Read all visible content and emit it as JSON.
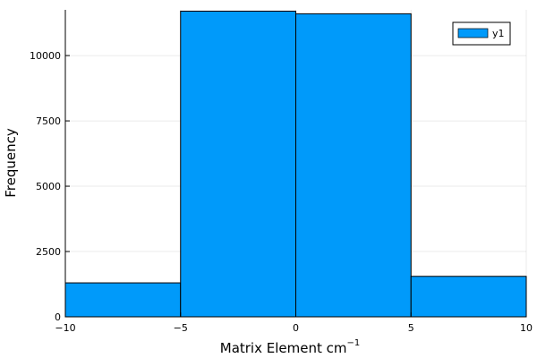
{
  "chart_data": {
    "type": "bar",
    "bins": [
      {
        "x0": -10,
        "x1": -5,
        "value": 1300
      },
      {
        "x0": -5,
        "x1": 0,
        "value": 11700
      },
      {
        "x0": 0,
        "x1": 5,
        "value": 11600
      },
      {
        "x0": 5,
        "x1": 10,
        "value": 1550
      }
    ],
    "xlabel": "Matrix Element cm",
    "xlabel_superscript": "−1",
    "ylabel": "Frequency",
    "xlim": [
      -10,
      10
    ],
    "ylim": [
      0,
      11750
    ],
    "xticks": [
      -10,
      -5,
      0,
      5,
      10
    ],
    "xtick_labels": [
      "−10",
      "−5",
      "0",
      "5",
      "10"
    ],
    "yticks": [
      0,
      2500,
      5000,
      7500,
      10000
    ],
    "ytick_labels": [
      "0",
      "2500",
      "5000",
      "7500",
      "10000"
    ],
    "grid": true,
    "legend": {
      "position": "top-right",
      "entries": [
        {
          "name": "y1",
          "color": "#009AFA"
        }
      ]
    },
    "bar_color": "#009AFA"
  }
}
